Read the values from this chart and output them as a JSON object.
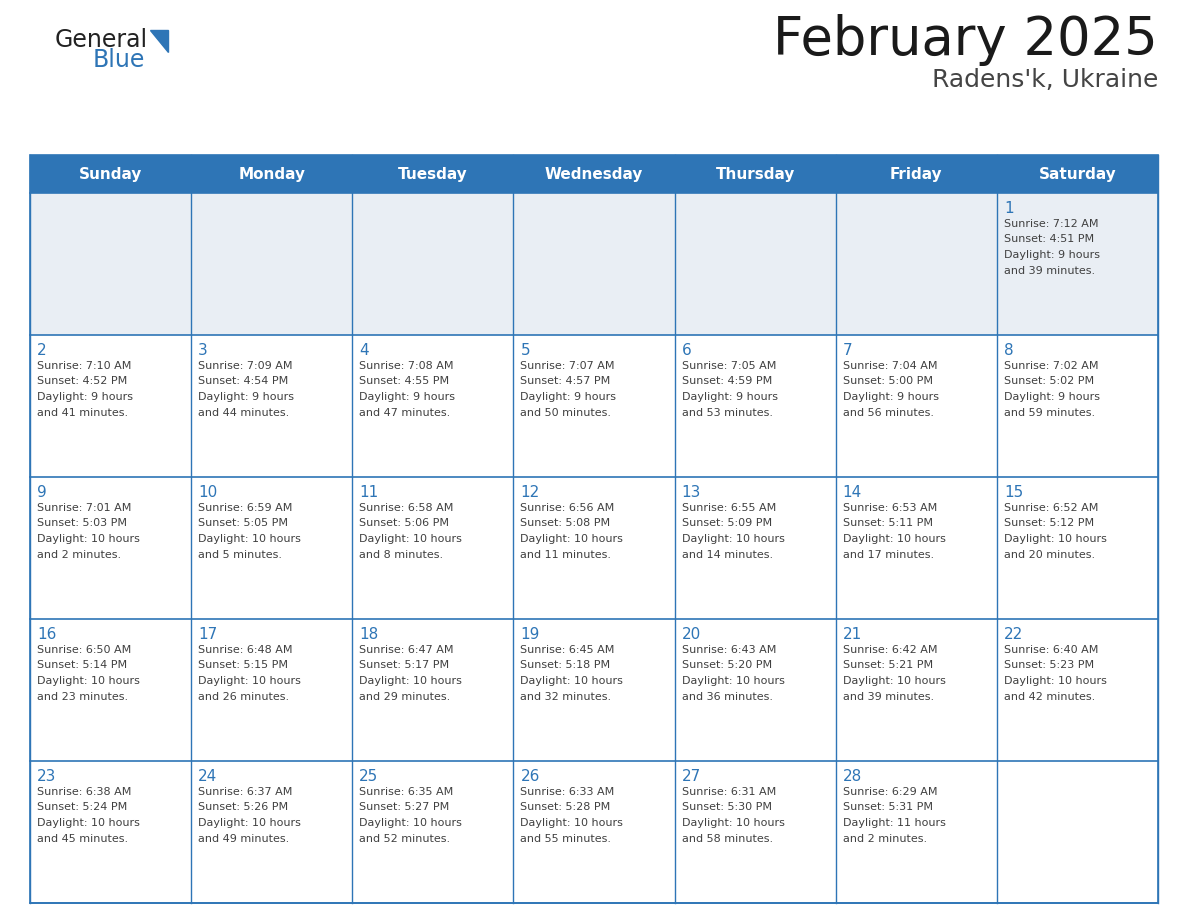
{
  "title": "February 2025",
  "subtitle": "Radens'k, Ukraine",
  "header_bg": "#2E75B6",
  "header_text_color": "#FFFFFF",
  "row1_bg": "#E9EEF4",
  "cell_bg": "#FFFFFF",
  "day_headers": [
    "Sunday",
    "Monday",
    "Tuesday",
    "Wednesday",
    "Thursday",
    "Friday",
    "Saturday"
  ],
  "grid_line_color": "#2E75B6",
  "day_number_color": "#2E75B6",
  "info_text_color": "#404040",
  "background_color": "#FFFFFF",
  "logo_text1": "General",
  "logo_text2": "Blue",
  "logo_color1": "#222222",
  "logo_color2": "#2E75B6",
  "title_color": "#1a1a1a",
  "subtitle_color": "#444444",
  "calendar_data": [
    [
      null,
      null,
      null,
      null,
      null,
      null,
      {
        "day": 1,
        "sunrise": "7:12 AM",
        "sunset": "4:51 PM",
        "daylight": "9 hours",
        "daylight2": "and 39 minutes."
      }
    ],
    [
      {
        "day": 2,
        "sunrise": "7:10 AM",
        "sunset": "4:52 PM",
        "daylight": "9 hours",
        "daylight2": "and 41 minutes."
      },
      {
        "day": 3,
        "sunrise": "7:09 AM",
        "sunset": "4:54 PM",
        "daylight": "9 hours",
        "daylight2": "and 44 minutes."
      },
      {
        "day": 4,
        "sunrise": "7:08 AM",
        "sunset": "4:55 PM",
        "daylight": "9 hours",
        "daylight2": "and 47 minutes."
      },
      {
        "day": 5,
        "sunrise": "7:07 AM",
        "sunset": "4:57 PM",
        "daylight": "9 hours",
        "daylight2": "and 50 minutes."
      },
      {
        "day": 6,
        "sunrise": "7:05 AM",
        "sunset": "4:59 PM",
        "daylight": "9 hours",
        "daylight2": "and 53 minutes."
      },
      {
        "day": 7,
        "sunrise": "7:04 AM",
        "sunset": "5:00 PM",
        "daylight": "9 hours",
        "daylight2": "and 56 minutes."
      },
      {
        "day": 8,
        "sunrise": "7:02 AM",
        "sunset": "5:02 PM",
        "daylight": "9 hours",
        "daylight2": "and 59 minutes."
      }
    ],
    [
      {
        "day": 9,
        "sunrise": "7:01 AM",
        "sunset": "5:03 PM",
        "daylight": "10 hours",
        "daylight2": "and 2 minutes."
      },
      {
        "day": 10,
        "sunrise": "6:59 AM",
        "sunset": "5:05 PM",
        "daylight": "10 hours",
        "daylight2": "and 5 minutes."
      },
      {
        "day": 11,
        "sunrise": "6:58 AM",
        "sunset": "5:06 PM",
        "daylight": "10 hours",
        "daylight2": "and 8 minutes."
      },
      {
        "day": 12,
        "sunrise": "6:56 AM",
        "sunset": "5:08 PM",
        "daylight": "10 hours",
        "daylight2": "and 11 minutes."
      },
      {
        "day": 13,
        "sunrise": "6:55 AM",
        "sunset": "5:09 PM",
        "daylight": "10 hours",
        "daylight2": "and 14 minutes."
      },
      {
        "day": 14,
        "sunrise": "6:53 AM",
        "sunset": "5:11 PM",
        "daylight": "10 hours",
        "daylight2": "and 17 minutes."
      },
      {
        "day": 15,
        "sunrise": "6:52 AM",
        "sunset": "5:12 PM",
        "daylight": "10 hours",
        "daylight2": "and 20 minutes."
      }
    ],
    [
      {
        "day": 16,
        "sunrise": "6:50 AM",
        "sunset": "5:14 PM",
        "daylight": "10 hours",
        "daylight2": "and 23 minutes."
      },
      {
        "day": 17,
        "sunrise": "6:48 AM",
        "sunset": "5:15 PM",
        "daylight": "10 hours",
        "daylight2": "and 26 minutes."
      },
      {
        "day": 18,
        "sunrise": "6:47 AM",
        "sunset": "5:17 PM",
        "daylight": "10 hours",
        "daylight2": "and 29 minutes."
      },
      {
        "day": 19,
        "sunrise": "6:45 AM",
        "sunset": "5:18 PM",
        "daylight": "10 hours",
        "daylight2": "and 32 minutes."
      },
      {
        "day": 20,
        "sunrise": "6:43 AM",
        "sunset": "5:20 PM",
        "daylight": "10 hours",
        "daylight2": "and 36 minutes."
      },
      {
        "day": 21,
        "sunrise": "6:42 AM",
        "sunset": "5:21 PM",
        "daylight": "10 hours",
        "daylight2": "and 39 minutes."
      },
      {
        "day": 22,
        "sunrise": "6:40 AM",
        "sunset": "5:23 PM",
        "daylight": "10 hours",
        "daylight2": "and 42 minutes."
      }
    ],
    [
      {
        "day": 23,
        "sunrise": "6:38 AM",
        "sunset": "5:24 PM",
        "daylight": "10 hours",
        "daylight2": "and 45 minutes."
      },
      {
        "day": 24,
        "sunrise": "6:37 AM",
        "sunset": "5:26 PM",
        "daylight": "10 hours",
        "daylight2": "and 49 minutes."
      },
      {
        "day": 25,
        "sunrise": "6:35 AM",
        "sunset": "5:27 PM",
        "daylight": "10 hours",
        "daylight2": "and 52 minutes."
      },
      {
        "day": 26,
        "sunrise": "6:33 AM",
        "sunset": "5:28 PM",
        "daylight": "10 hours",
        "daylight2": "and 55 minutes."
      },
      {
        "day": 27,
        "sunrise": "6:31 AM",
        "sunset": "5:30 PM",
        "daylight": "10 hours",
        "daylight2": "and 58 minutes."
      },
      {
        "day": 28,
        "sunrise": "6:29 AM",
        "sunset": "5:31 PM",
        "daylight": "11 hours",
        "daylight2": "and 2 minutes."
      },
      null
    ]
  ]
}
